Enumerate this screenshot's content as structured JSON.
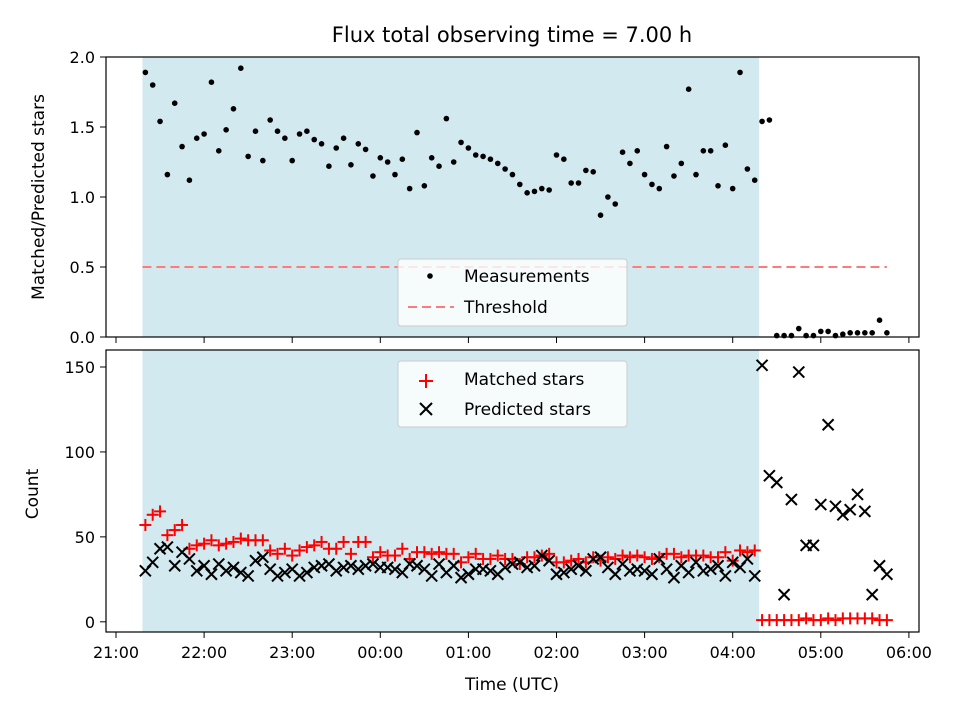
{
  "chart_data": [
    {
      "type": "scatter",
      "title": "Flux total observing time = 7.00 h",
      "ylabel": "Matched/Predicted stars",
      "xlabel": "",
      "ylim": [
        0,
        2.0
      ],
      "yticks": [
        "0.0",
        "0.5",
        "1.0",
        "1.5",
        "2.0"
      ],
      "xticks": [
        "21:00",
        "22:00",
        "23:00",
        "00:00",
        "01:00",
        "02:00",
        "03:00",
        "04:00",
        "05:00",
        "06:00"
      ],
      "observing_window": {
        "start": "21:18",
        "end": "04:18",
        "color": "#d2e9f0"
      },
      "legend": {
        "placement": "lower center",
        "entries": [
          "Measurements",
          "Threshold"
        ]
      },
      "threshold": {
        "name": "Threshold",
        "value": 0.5,
        "x_start": "21:18",
        "x_end": "05:45",
        "color": "#ff7b7b"
      },
      "series": [
        {
          "name": "Measurements",
          "color": "#000000",
          "x": [
            "21:20",
            "21:25",
            "21:30",
            "21:35",
            "21:40",
            "21:45",
            "21:50",
            "21:55",
            "22:00",
            "22:05",
            "22:10",
            "22:15",
            "22:20",
            "22:25",
            "22:30",
            "22:35",
            "22:40",
            "22:45",
            "22:50",
            "22:55",
            "23:00",
            "23:05",
            "23:10",
            "23:15",
            "23:20",
            "23:25",
            "23:30",
            "23:35",
            "23:40",
            "23:45",
            "23:50",
            "23:55",
            "00:00",
            "00:05",
            "00:10",
            "00:15",
            "00:20",
            "00:25",
            "00:30",
            "00:35",
            "00:40",
            "00:45",
            "00:50",
            "00:55",
            "01:00",
            "01:05",
            "01:10",
            "01:15",
            "01:20",
            "01:25",
            "01:30",
            "01:35",
            "01:40",
            "01:45",
            "01:50",
            "01:55",
            "02:00",
            "02:05",
            "02:10",
            "02:15",
            "02:20",
            "02:25",
            "02:30",
            "02:35",
            "02:40",
            "02:45",
            "02:50",
            "02:55",
            "03:00",
            "03:05",
            "03:10",
            "03:15",
            "03:20",
            "03:25",
            "03:30",
            "03:35",
            "03:40",
            "03:45",
            "03:50",
            "03:55",
            "04:00",
            "04:05",
            "04:10",
            "04:15",
            "04:20",
            "04:25",
            "04:30",
            "04:35",
            "04:40",
            "04:45",
            "04:50",
            "04:55",
            "05:00",
            "05:05",
            "05:10",
            "05:15",
            "05:20",
            "05:25",
            "05:30",
            "05:35",
            "05:40",
            "05:45"
          ],
          "y": [
            1.89,
            1.8,
            1.54,
            1.16,
            1.67,
            1.36,
            1.12,
            1.42,
            1.45,
            1.82,
            1.33,
            1.48,
            1.63,
            1.92,
            1.29,
            1.47,
            1.26,
            1.55,
            1.47,
            1.42,
            1.26,
            1.45,
            1.47,
            1.41,
            1.38,
            1.22,
            1.35,
            1.42,
            1.23,
            1.38,
            1.34,
            1.15,
            1.28,
            1.25,
            1.16,
            1.27,
            1.06,
            1.46,
            1.08,
            1.28,
            1.22,
            1.56,
            1.25,
            1.39,
            1.35,
            1.3,
            1.29,
            1.27,
            1.24,
            1.2,
            1.16,
            1.09,
            1.03,
            1.04,
            1.06,
            1.05,
            1.3,
            1.27,
            1.1,
            1.1,
            1.19,
            1.18,
            0.87,
            1.0,
            0.95,
            1.32,
            1.24,
            1.33,
            1.16,
            1.09,
            1.06,
            1.36,
            1.15,
            1.24,
            1.77,
            1.16,
            1.33,
            1.33,
            1.08,
            1.37,
            1.06,
            1.89,
            1.2,
            1.12,
            1.54,
            1.55,
            0.01,
            0.01,
            0.01,
            0.06,
            0.01,
            0.01,
            0.04,
            0.04,
            0.01,
            0.02,
            0.03,
            0.03,
            0.03,
            0.03,
            0.12,
            0.03
          ]
        }
      ]
    },
    {
      "type": "scatter",
      "title": "",
      "ylabel": "Count",
      "xlabel": "Time (UTC)",
      "ylim": [
        -6,
        160
      ],
      "yticks": [
        "0",
        "50",
        "100",
        "150"
      ],
      "xticks": [
        "21:00",
        "22:00",
        "23:00",
        "00:00",
        "01:00",
        "02:00",
        "03:00",
        "04:00",
        "05:00",
        "06:00"
      ],
      "observing_window": {
        "start": "21:18",
        "end": "04:18",
        "color": "#d2e9f0"
      },
      "legend": {
        "placement": "upper center",
        "entries": [
          "Matched stars",
          "Predicted stars"
        ]
      },
      "series": [
        {
          "name": "Matched stars",
          "marker": "+",
          "color": "#ff0000",
          "x": [
            "21:20",
            "21:25",
            "21:30",
            "21:35",
            "21:40",
            "21:45",
            "21:50",
            "21:55",
            "22:00",
            "22:05",
            "22:10",
            "22:15",
            "22:20",
            "22:25",
            "22:30",
            "22:35",
            "22:40",
            "22:45",
            "22:50",
            "22:55",
            "23:00",
            "23:05",
            "23:10",
            "23:15",
            "23:20",
            "23:25",
            "23:30",
            "23:35",
            "23:40",
            "23:45",
            "23:50",
            "23:55",
            "00:00",
            "00:05",
            "00:10",
            "00:15",
            "00:20",
            "00:25",
            "00:30",
            "00:35",
            "00:40",
            "00:45",
            "00:50",
            "00:55",
            "01:00",
            "01:05",
            "01:10",
            "01:15",
            "01:20",
            "01:25",
            "01:30",
            "01:35",
            "01:40",
            "01:45",
            "01:50",
            "01:55",
            "02:00",
            "02:05",
            "02:10",
            "02:15",
            "02:20",
            "02:25",
            "02:30",
            "02:35",
            "02:40",
            "02:45",
            "02:50",
            "02:55",
            "03:00",
            "03:05",
            "03:10",
            "03:15",
            "03:20",
            "03:25",
            "03:30",
            "03:35",
            "03:40",
            "03:45",
            "03:50",
            "03:55",
            "04:00",
            "04:05",
            "04:10",
            "04:15",
            "04:20",
            "04:25",
            "04:30",
            "04:35",
            "04:40",
            "04:45",
            "04:50",
            "04:55",
            "05:00",
            "05:05",
            "05:10",
            "05:15",
            "05:20",
            "05:25",
            "05:30",
            "05:35",
            "05:40",
            "05:45"
          ],
          "y": [
            57,
            63,
            65,
            51,
            54,
            57,
            43,
            45,
            46,
            48,
            45,
            46,
            47,
            49,
            48,
            48,
            48,
            42,
            40,
            43,
            39,
            42,
            44,
            45,
            47,
            43,
            43,
            47,
            40,
            47,
            47,
            38,
            41,
            39,
            39,
            43,
            37,
            41,
            41,
            40,
            41,
            40,
            40,
            35,
            38,
            40,
            37,
            37,
            39,
            37,
            37,
            34,
            38,
            38,
            39,
            40,
            35,
            35,
            36,
            37,
            35,
            38,
            36,
            38,
            37,
            39,
            38,
            39,
            38,
            37,
            38,
            40,
            40,
            38,
            39,
            39,
            39,
            38,
            38,
            41,
            36,
            42,
            41,
            42,
            1,
            1,
            1,
            1,
            1,
            1,
            2,
            1,
            1,
            2,
            1,
            2,
            2,
            2,
            2,
            2,
            1,
            1
          ]
        },
        {
          "name": "Predicted stars",
          "marker": "x",
          "color": "#000000",
          "x": [
            "21:20",
            "21:25",
            "21:30",
            "21:35",
            "21:40",
            "21:45",
            "21:50",
            "21:55",
            "22:00",
            "22:05",
            "22:10",
            "22:15",
            "22:20",
            "22:25",
            "22:30",
            "22:35",
            "22:40",
            "22:45",
            "22:50",
            "22:55",
            "23:00",
            "23:05",
            "23:10",
            "23:15",
            "23:20",
            "23:25",
            "23:30",
            "23:35",
            "23:40",
            "23:45",
            "23:50",
            "23:55",
            "00:00",
            "00:05",
            "00:10",
            "00:15",
            "00:20",
            "00:25",
            "00:30",
            "00:35",
            "00:40",
            "00:45",
            "00:50",
            "00:55",
            "01:00",
            "01:05",
            "01:10",
            "01:15",
            "01:20",
            "01:25",
            "01:30",
            "01:35",
            "01:40",
            "01:45",
            "01:50",
            "01:55",
            "02:00",
            "02:05",
            "02:10",
            "02:15",
            "02:20",
            "02:25",
            "02:30",
            "02:35",
            "02:40",
            "02:45",
            "02:50",
            "02:55",
            "03:00",
            "03:05",
            "03:10",
            "03:15",
            "03:20",
            "03:25",
            "03:30",
            "03:35",
            "03:40",
            "03:45",
            "03:50",
            "03:55",
            "04:00",
            "04:05",
            "04:10",
            "04:15",
            "04:20",
            "04:25",
            "04:30",
            "04:35",
            "04:40",
            "04:45",
            "04:50",
            "04:55",
            "05:00",
            "05:05",
            "05:10",
            "05:15",
            "05:20",
            "05:25",
            "05:30",
            "05:35",
            "05:40",
            "05:45"
          ],
          "y": [
            30,
            35,
            43,
            44,
            33,
            41,
            37,
            30,
            33,
            28,
            34,
            30,
            32,
            29,
            27,
            36,
            38,
            31,
            27,
            29,
            31,
            27,
            29,
            32,
            33,
            34,
            30,
            32,
            33,
            31,
            33,
            34,
            32,
            32,
            31,
            29,
            34,
            33,
            31,
            27,
            34,
            29,
            33,
            26,
            28,
            31,
            31,
            30,
            28,
            32,
            34,
            35,
            32,
            33,
            39,
            36,
            28,
            29,
            31,
            33,
            30,
            37,
            38,
            32,
            28,
            34,
            30,
            31,
            30,
            28,
            37,
            31,
            26,
            33,
            29,
            35,
            30,
            31,
            33,
            27,
            35,
            32,
            37,
            27,
            151,
            86,
            82,
            16,
            72,
            147,
            45,
            45,
            69,
            116,
            68,
            63,
            66,
            75,
            65,
            16,
            33,
            28
          ]
        }
      ]
    }
  ]
}
